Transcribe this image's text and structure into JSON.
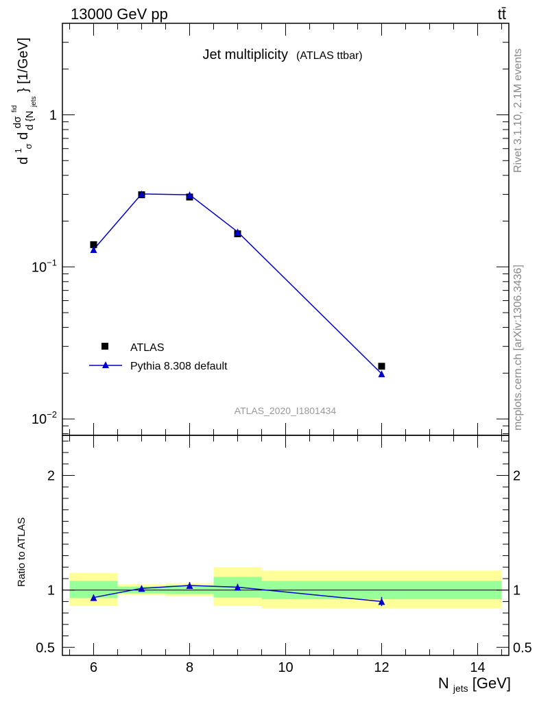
{
  "header": {
    "left_text": "13000 GeV pp",
    "right_text": "tt̄"
  },
  "side_text": {
    "rivet": "Rivet 3.1.10,  2.1M events",
    "mcplots": "mcplots.cern.ch [arXiv:1306.3436]"
  },
  "colors": {
    "data_marker": "#000000",
    "mc_line": "#0000cc",
    "band_inner": "#99ff99",
    "band_outer": "#ffff99"
  },
  "chart_data": [
    {
      "type": "scatter",
      "title": "Jet multiplicity",
      "subtitle": "(ATLAS ttbar)",
      "analysis_id": "ATLAS_2020_I1801434",
      "ylabel_main": "d",
      "ylabel_frac": "1",
      "ylabel_sigma": "σ",
      "ylabel_mid": "d",
      "ylabel_num": "dσ",
      "ylabel_num_sup": "fid",
      "ylabel_den": "d {N",
      "ylabel_den_sub": "jets",
      "ylabel_unit": "} [1/GeV]",
      "yscale": "log",
      "xlim": [
        5.35,
        14.65
      ],
      "ylim": [
        0.0078,
        4.0
      ],
      "yticks": [
        {
          "value": 1,
          "label": "1"
        },
        {
          "value": 0.1,
          "label": "10",
          "sup": "−1"
        },
        {
          "value": 0.01,
          "label": "10",
          "sup": "−2"
        }
      ],
      "legend_position": "lower-left",
      "series": [
        {
          "name": "ATLAS",
          "marker": "square",
          "x": [
            6,
            7,
            8,
            9,
            12
          ],
          "y": [
            0.14,
            0.298,
            0.288,
            0.165,
            0.0222
          ]
        },
        {
          "name": "Pythia 8.308 default",
          "marker": "triangle",
          "x": [
            6,
            7,
            8,
            9,
            12
          ],
          "y": [
            0.13,
            0.302,
            0.298,
            0.17,
            0.0198
          ]
        }
      ]
    },
    {
      "type": "line",
      "ylabel": "Ratio to ATLAS",
      "xlabel": "N",
      "xlabel_sub": "jets",
      "xlabel_unit": " [GeV]",
      "xlim": [
        5.35,
        14.65
      ],
      "ylim": [
        0.43,
        2.35
      ],
      "xticks": [
        6,
        8,
        10,
        12,
        14
      ],
      "yticks": [
        {
          "value": 0.5,
          "label": "0.5"
        },
        {
          "value": 1,
          "label": "1"
        },
        {
          "value": 2,
          "label": "2"
        }
      ],
      "bands": [
        {
          "x0": 5.5,
          "x1": 6.5,
          "inner": [
            0.93,
            1.08
          ],
          "outer": [
            0.86,
            1.15
          ]
        },
        {
          "x0": 6.5,
          "x1": 7.5,
          "inner": [
            0.97,
            1.03
          ],
          "outer": [
            0.955,
            1.05
          ]
        },
        {
          "x0": 7.5,
          "x1": 8.5,
          "inner": [
            0.965,
            1.04
          ],
          "outer": [
            0.945,
            1.06
          ]
        },
        {
          "x0": 8.5,
          "x1": 9.5,
          "inner": [
            0.935,
            1.115
          ],
          "outer": [
            0.86,
            1.2
          ]
        },
        {
          "x0": 9.5,
          "x1": 14.5,
          "inner": [
            0.92,
            1.08
          ],
          "outer": [
            0.84,
            1.17
          ]
        }
      ],
      "series": [
        {
          "name": "Pythia 8.308 default",
          "x": [
            6,
            7,
            8,
            9,
            12
          ],
          "y": [
            0.935,
            1.015,
            1.04,
            1.025,
            0.9
          ],
          "yerr": [
            0.025,
            0.02,
            0.03,
            0.03,
            0.04
          ]
        }
      ]
    }
  ]
}
